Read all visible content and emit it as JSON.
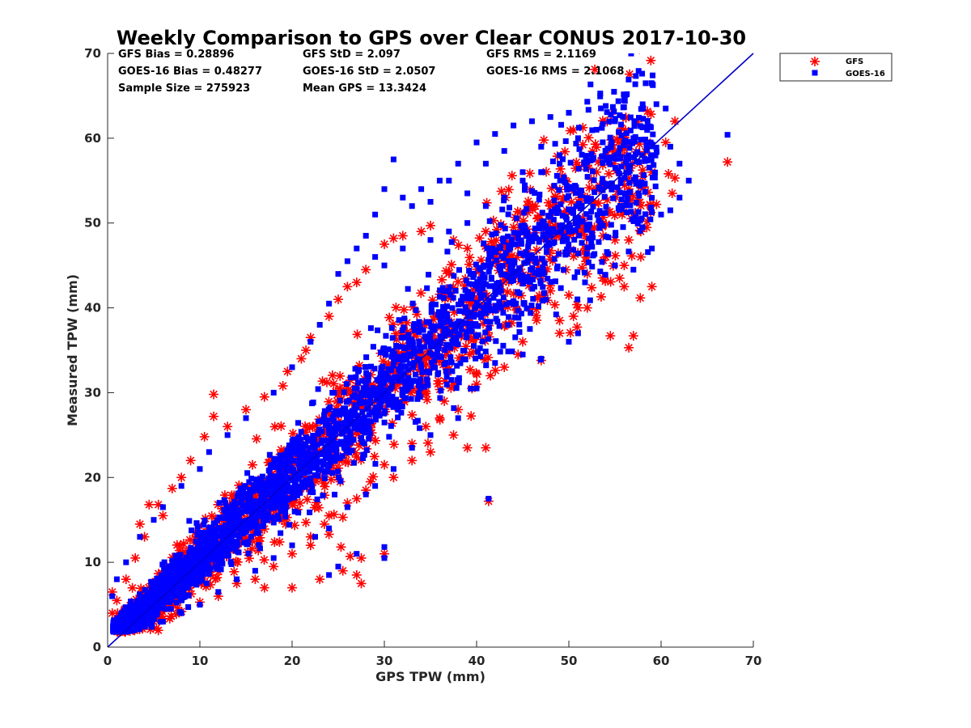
{
  "chart_data": {
    "type": "scatter",
    "title": "Weekly Comparison to GPS over Clear CONUS 2017-10-30",
    "xlabel": "GPS TPW (mm)",
    "ylabel": "Measured TPW (mm)",
    "xlim": [
      0,
      70
    ],
    "ylim": [
      0,
      70
    ],
    "xticks": [
      "0",
      "10",
      "20",
      "30",
      "40",
      "50",
      "60",
      "70"
    ],
    "yticks": [
      "0",
      "10",
      "20",
      "30",
      "40",
      "50",
      "60",
      "70"
    ],
    "grid": false,
    "legend_position": "top-right, outside plot",
    "reference_line": {
      "x": [
        0,
        70
      ],
      "y": [
        0,
        70
      ],
      "color": "#0000CC"
    },
    "stats": [
      [
        "GFS Bias = 0.28896",
        "GFS StD = 2.097",
        "GFS RMS = 2.1169"
      ],
      [
        "GOES-16 Bias = 0.48277",
        "GOES-16 StD = 2.0507",
        "GOES-16 RMS = 2.1068"
      ],
      [
        "Sample Size = 275923",
        "Mean GPS = 13.3424",
        ""
      ]
    ],
    "series": [
      {
        "name": "GFS",
        "marker": "asterisk",
        "color": "#FF0000",
        "outliers": [
          [
            61.5,
            62
          ],
          [
            67.2,
            57.2
          ],
          [
            61.5,
            55.3
          ],
          [
            60.8,
            55.8
          ],
          [
            61.2,
            53.5
          ],
          [
            59.5,
            52.2
          ],
          [
            58.5,
            50.2
          ],
          [
            57.8,
            49
          ],
          [
            56.5,
            48
          ],
          [
            57.8,
            46
          ],
          [
            56,
            45
          ],
          [
            55.5,
            43.5
          ],
          [
            56,
            42.5
          ],
          [
            59,
            42.5
          ],
          [
            53.5,
            41.3
          ],
          [
            52,
            40
          ],
          [
            50.5,
            39
          ],
          [
            49,
            38.5
          ],
          [
            54.5,
            36.7
          ],
          [
            57,
            36.7
          ],
          [
            56.5,
            35.3
          ],
          [
            47,
            33.8
          ],
          [
            44.5,
            34.5
          ],
          [
            41.5,
            32
          ],
          [
            39.5,
            30.5
          ],
          [
            36.5,
            29
          ],
          [
            34.5,
            26
          ],
          [
            37.5,
            25
          ],
          [
            39,
            23.5
          ],
          [
            41,
            23.5
          ],
          [
            35,
            23
          ],
          [
            33,
            22
          ],
          [
            31,
            20
          ],
          [
            28.5,
            19.5
          ],
          [
            27,
            17.5
          ],
          [
            41.3,
            17.2
          ],
          [
            25.5,
            15.3
          ],
          [
            23.5,
            14.5
          ],
          [
            21.5,
            14.7
          ],
          [
            24,
            13.3
          ],
          [
            22,
            12
          ],
          [
            25.3,
            11.8
          ],
          [
            26.3,
            10.7
          ],
          [
            27.5,
            10.5
          ],
          [
            25.5,
            9
          ],
          [
            27,
            8.5
          ],
          [
            27.5,
            7.5
          ],
          [
            23,
            8
          ],
          [
            20,
            7
          ],
          [
            17,
            7
          ],
          [
            30,
            11
          ],
          [
            11.5,
            29.8
          ],
          [
            11.5,
            27.2
          ],
          [
            10.5,
            24.8
          ],
          [
            9,
            22
          ],
          [
            8,
            20
          ],
          [
            7,
            18.7
          ],
          [
            4.5,
            16.8
          ],
          [
            5.5,
            16.8
          ],
          [
            13,
            26
          ],
          [
            15,
            28
          ],
          [
            17,
            29.5
          ],
          [
            19,
            30.8
          ],
          [
            19.5,
            32.5
          ],
          [
            21,
            34
          ],
          [
            21.5,
            35
          ],
          [
            22,
            36.5
          ],
          [
            24,
            39
          ],
          [
            25,
            41
          ],
          [
            26,
            42.5
          ],
          [
            27,
            43
          ],
          [
            28,
            44.5
          ],
          [
            30,
            47.5
          ],
          [
            31,
            48.2
          ],
          [
            32,
            48.5
          ],
          [
            34,
            49
          ],
          [
            35,
            49.7
          ],
          [
            37.5,
            48
          ],
          [
            39,
            47
          ],
          [
            41,
            49
          ],
          [
            44,
            49.5
          ],
          [
            48,
            52
          ],
          [
            51,
            52
          ],
          [
            52,
            53
          ],
          [
            53,
            56
          ],
          [
            54,
            54.5
          ],
          [
            56.5,
            54
          ],
          [
            58,
            55.5
          ],
          [
            59,
            56
          ],
          [
            60.5,
            59.5
          ],
          [
            46,
            44
          ],
          [
            48,
            42
          ],
          [
            50,
            41.5
          ],
          [
            52,
            44
          ],
          [
            54,
            46
          ],
          [
            55,
            48
          ],
          [
            49,
            37
          ],
          [
            51,
            40
          ],
          [
            45,
            36
          ],
          [
            43,
            33
          ],
          [
            40,
            31
          ],
          [
            38,
            28
          ],
          [
            36,
            27
          ],
          [
            33,
            24
          ],
          [
            30,
            21.5
          ],
          [
            28,
            18.5
          ],
          [
            26,
            17
          ],
          [
            24,
            15.5
          ],
          [
            22,
            13
          ],
          [
            20,
            11
          ],
          [
            18,
            9.5
          ],
          [
            16,
            8
          ],
          [
            14,
            7.5
          ],
          [
            12,
            6
          ],
          [
            10,
            5.3
          ],
          [
            8,
            4.2
          ],
          [
            6,
            3.3
          ],
          [
            4,
            2.5
          ],
          [
            2.5,
            2.2
          ],
          [
            1,
            3
          ],
          [
            0.5,
            4
          ],
          [
            1,
            5.5
          ],
          [
            0.5,
            6.5
          ],
          [
            2,
            8
          ],
          [
            3,
            10.5
          ],
          [
            4,
            13
          ],
          [
            3.5,
            14.5
          ],
          [
            6,
            15.5
          ]
        ]
      },
      {
        "name": "GOES-16",
        "marker": "square",
        "color": "#0000FF",
        "outliers": [
          [
            60.5,
            63.5
          ],
          [
            58,
            64
          ],
          [
            56,
            64.5
          ],
          [
            54,
            63.8
          ],
          [
            52,
            64.3
          ],
          [
            50,
            63
          ],
          [
            48,
            62.5
          ],
          [
            46,
            62
          ],
          [
            44,
            61.5
          ],
          [
            42,
            60.5
          ],
          [
            40,
            59.5
          ],
          [
            38,
            57
          ],
          [
            36,
            55
          ],
          [
            34,
            54
          ],
          [
            32,
            53
          ],
          [
            31,
            57.5
          ],
          [
            30,
            54
          ],
          [
            29,
            51
          ],
          [
            33,
            52
          ],
          [
            35,
            52.5
          ],
          [
            37,
            55
          ],
          [
            39,
            53.5
          ],
          [
            41,
            57
          ],
          [
            43,
            58.5
          ],
          [
            45,
            56
          ],
          [
            47,
            59
          ],
          [
            49,
            58
          ],
          [
            51,
            60
          ],
          [
            53,
            61
          ],
          [
            55,
            62
          ],
          [
            57,
            60
          ],
          [
            59,
            58
          ],
          [
            61,
            59
          ],
          [
            67.2,
            60.4
          ],
          [
            62,
            57
          ],
          [
            63,
            55
          ],
          [
            62,
            53
          ],
          [
            61,
            51.5
          ],
          [
            60,
            51
          ],
          [
            58,
            49.5
          ],
          [
            59,
            47
          ],
          [
            55,
            45
          ],
          [
            57,
            44.5
          ],
          [
            51,
            37
          ],
          [
            50,
            36
          ],
          [
            47,
            34
          ],
          [
            45,
            34.5
          ],
          [
            42,
            33.5
          ],
          [
            40,
            30.5
          ],
          [
            38,
            27
          ],
          [
            35,
            25
          ],
          [
            33,
            23.5
          ],
          [
            31,
            21
          ],
          [
            29,
            19
          ],
          [
            28,
            18
          ],
          [
            26,
            16.5
          ],
          [
            24,
            14
          ],
          [
            22.5,
            13
          ],
          [
            30,
            11.8
          ],
          [
            30,
            10.5
          ],
          [
            27,
            11
          ],
          [
            25,
            9.5
          ],
          [
            24,
            8.5
          ],
          [
            41.3,
            17.5
          ],
          [
            15,
            27
          ],
          [
            18,
            30
          ],
          [
            20,
            33
          ],
          [
            22,
            36
          ],
          [
            23,
            38
          ],
          [
            24,
            40.5
          ],
          [
            25,
            44
          ],
          [
            26,
            45.5
          ],
          [
            27,
            47
          ],
          [
            28,
            48.5
          ],
          [
            29,
            46
          ],
          [
            30,
            45
          ],
          [
            32,
            47
          ],
          [
            35,
            48
          ],
          [
            37,
            49
          ],
          [
            39,
            50
          ],
          [
            41,
            52
          ],
          [
            43,
            53
          ],
          [
            45,
            55
          ],
          [
            47,
            56
          ],
          [
            49,
            57
          ],
          [
            13,
            25
          ],
          [
            11,
            23
          ],
          [
            10,
            21
          ],
          [
            8,
            19
          ],
          [
            6,
            16.5
          ],
          [
            5,
            15
          ],
          [
            3.5,
            13
          ],
          [
            2,
            10
          ],
          [
            1,
            8
          ],
          [
            0.5,
            6
          ],
          [
            1.5,
            4
          ],
          [
            2,
            3
          ],
          [
            4,
            2.5
          ],
          [
            6,
            3
          ],
          [
            8,
            4
          ],
          [
            10,
            5
          ],
          [
            12,
            6.5
          ],
          [
            14,
            8
          ],
          [
            16,
            9
          ],
          [
            18,
            10.5
          ],
          [
            20,
            12
          ]
        ]
      }
    ]
  }
}
